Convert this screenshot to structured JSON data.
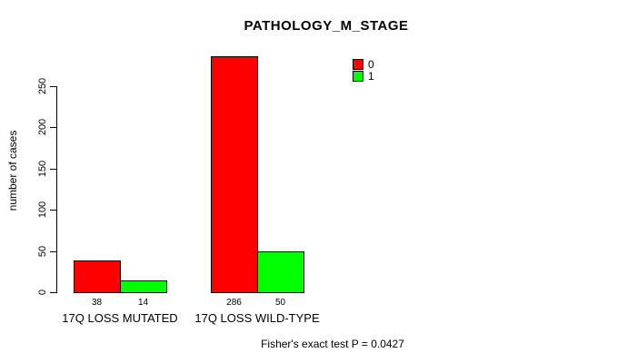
{
  "chart_data": {
    "type": "bar",
    "title": "PATHOLOGY_M_STAGE",
    "ylabel": "number of cases",
    "xlabel": "",
    "ylim": [
      0,
      250
    ],
    "yticks": [
      0,
      50,
      100,
      150,
      200,
      250
    ],
    "grid": false,
    "legend_position": "top-right",
    "categories": [
      "17Q LOSS MUTATED",
      "17Q LOSS WILD-TYPE"
    ],
    "series": [
      {
        "name": "0",
        "color": "#ff0000",
        "values": [
          38,
          286
        ]
      },
      {
        "name": "1",
        "color": "#00ff00",
        "values": [
          14,
          50
        ]
      }
    ],
    "bar_value_labels": [
      [
        "38",
        "14"
      ],
      [
        "286",
        "50"
      ]
    ],
    "legend": {
      "entries": [
        {
          "label": "0",
          "color": "#ff0000"
        },
        {
          "label": "1",
          "color": "#00ff00"
        }
      ]
    },
    "footnote": "Fisher's exact test P = 0.0427",
    "colors": {
      "background": "#ffffff",
      "axis": "#000000",
      "text": "#000000"
    }
  }
}
